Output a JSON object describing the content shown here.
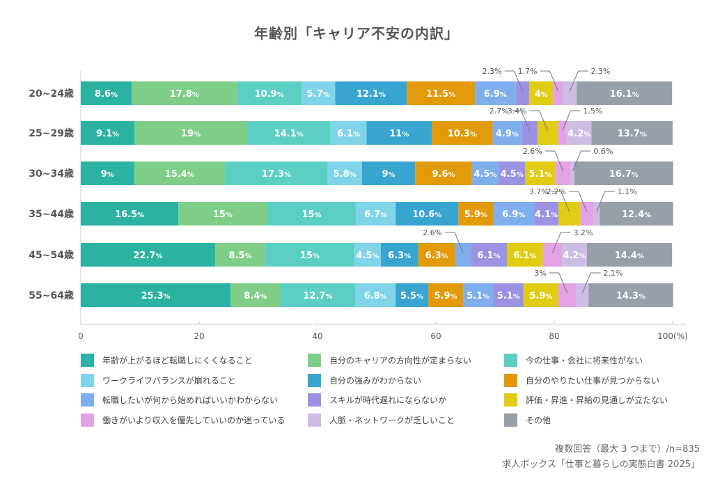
{
  "chart_data": {
    "type": "bar",
    "orientation": "horizontal",
    "stacked": true,
    "title": "年齢別「キャリア不安の内訳」",
    "categories": [
      "20~24歳",
      "25~29歳",
      "30~34歳",
      "35~44歳",
      "45~54歳",
      "55~64歳"
    ],
    "xlim": [
      0,
      100
    ],
    "xticks": [
      "0",
      "20",
      "40",
      "60",
      "80",
      "100(%)"
    ],
    "value_suffix": "%",
    "grid": false,
    "legend_position": "bottom",
    "series": [
      {
        "name": "年齢が上がるほど転職しにくくなること",
        "color": "#2bb2a2",
        "values": [
          8.6,
          9.1,
          9,
          16.5,
          22.7,
          25.3
        ]
      },
      {
        "name": "自分のキャリアの方向性が定まらない",
        "color": "#7fce88",
        "values": [
          17.8,
          19,
          15.4,
          15,
          8.5,
          8.4
        ]
      },
      {
        "name": "今の仕事・会社に将来性がない",
        "color": "#5ccfc4",
        "values": [
          10.9,
          14.1,
          17.3,
          15,
          15,
          12.7
        ]
      },
      {
        "name": "ワークライフバランスが崩れること",
        "color": "#80d4ea",
        "values": [
          5.7,
          6.1,
          5.8,
          6.7,
          4.5,
          6.8
        ]
      },
      {
        "name": "自分の強みがわからない",
        "color": "#37a5cf",
        "values": [
          12.1,
          11,
          9,
          10.6,
          6.3,
          5.5
        ]
      },
      {
        "name": "自分のやりたい仕事が見つからない",
        "color": "#e29a0b",
        "values": [
          11.5,
          10.3,
          9.6,
          5.9,
          6.3,
          5.9
        ]
      },
      {
        "name": "転職したいが何から始めればいいかわからない",
        "color": "#7eaeed",
        "values": [
          6.9,
          4.9,
          4.5,
          6.9,
          2.6,
          5.1
        ]
      },
      {
        "name": "スキルが時代遅れにならないか",
        "color": "#9b92e4",
        "values": [
          2.3,
          2.7,
          4.5,
          4.1,
          6.1,
          5.1
        ]
      },
      {
        "name": "評価・昇進・昇給の見通しが立たない",
        "color": "#e1cc14",
        "values": [
          4,
          3.4,
          5.1,
          3.7,
          6.1,
          5.9
        ]
      },
      {
        "name": "働きがいより収入を優先していいのか迷っている",
        "color": "#e2a2e5",
        "values": [
          1.7,
          1.5,
          2.6,
          2.2,
          3.2,
          3
        ]
      },
      {
        "name": "人脈・ネットワークが乏しいこと",
        "color": "#cdbde5",
        "values": [
          2.3,
          4.2,
          0.6,
          1.1,
          4.2,
          2.1
        ]
      },
      {
        "name": "その他",
        "color": "#979fa8",
        "values": [
          16.1,
          13.7,
          16.7,
          12.4,
          14.4,
          14.3
        ]
      }
    ]
  },
  "footer": {
    "note": "複数回答（最大 3 つまで）/n=835",
    "source": "求人ボックス「仕事と暮らしの実態白書 2025」"
  }
}
